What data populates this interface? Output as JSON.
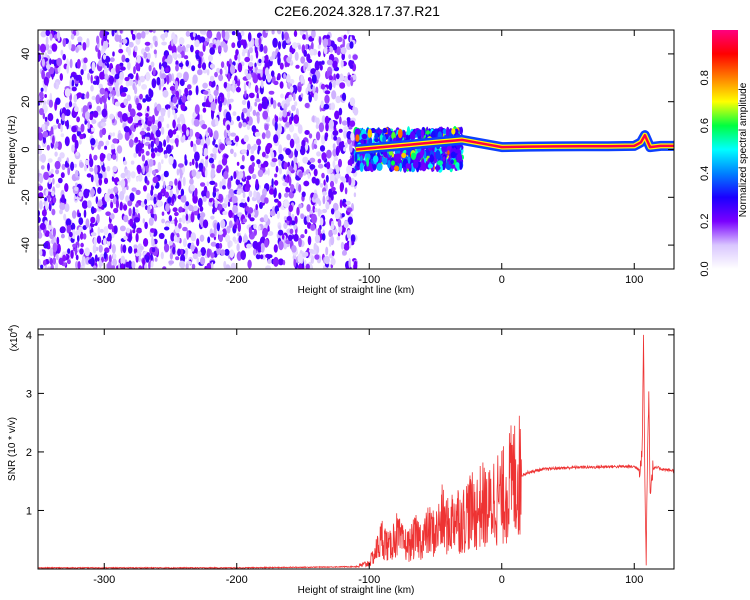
{
  "figure_title": "C2E6.2024.328.17.37.R21",
  "chart_data": [
    {
      "type": "heatmap",
      "title": "",
      "xlabel": "Height of straight line (km)",
      "ylabel": "Frequency (Hz)",
      "xlim": [
        -350,
        130
      ],
      "ylim": [
        -50,
        50
      ],
      "xticks": [
        -300,
        -200,
        -100,
        0,
        100
      ],
      "yticks": [
        -40,
        -20,
        0,
        20,
        40
      ],
      "xtick_labels": [
        "-300",
        "-200",
        "-100",
        "0",
        "100"
      ],
      "ytick_labels": [
        "-40",
        "-20",
        "0",
        "20",
        "40"
      ],
      "colorbar": {
        "label": "Normalized spectral amplitude",
        "range": [
          0,
          1
        ],
        "ticks": [
          0.0,
          0.2,
          0.4,
          0.6,
          0.8
        ],
        "tick_labels": [
          "0.0",
          "0.2",
          "0.4",
          "0.6",
          "0.8"
        ],
        "colormap": [
          "#ffffff",
          "#d9c6ff",
          "#7a00ff",
          "#1a00ff",
          "#0080ff",
          "#00ffff",
          "#00ff40",
          "#ffff00",
          "#ff8000",
          "#ff0000",
          "#ff007f"
        ]
      },
      "regions": [
        {
          "x_range": [
            -350,
            -110
          ],
          "freq_range": [
            -50,
            50
          ],
          "amplitude": 0.1
        },
        {
          "x_range": [
            -110,
            -30
          ],
          "freq_range": [
            -8,
            8
          ],
          "amplitude": 0.5
        },
        {
          "x_range": [
            -30,
            130
          ],
          "freq_range": [
            -1,
            3
          ],
          "amplitude": 0.9
        }
      ],
      "ridge": {
        "x": [
          -110,
          -90,
          -70,
          -50,
          -30,
          -10,
          0,
          20,
          40,
          60,
          80,
          100,
          105,
          108,
          112,
          120,
          130
        ],
        "freq": [
          0,
          1,
          2,
          3,
          4,
          2,
          1,
          1.2,
          1.3,
          1.4,
          1.4,
          1.5,
          3,
          6,
          1,
          1.5,
          1.5
        ]
      }
    },
    {
      "type": "line",
      "title": "",
      "xlabel": "Height of straight line (km)",
      "ylabel": "SNR (10 * v/v)",
      "y_multiplier_label": "(x10",
      "y_multiplier_exp": "4",
      "y_multiplier_close": ")",
      "xlim": [
        -350,
        130
      ],
      "ylim": [
        0,
        4.1
      ],
      "xticks": [
        -300,
        -200,
        -100,
        0,
        100
      ],
      "yticks": [
        1,
        2,
        3,
        4
      ],
      "xtick_labels": [
        "-300",
        "-200",
        "-100",
        "0",
        "100"
      ],
      "ytick_labels": [
        "1",
        "2",
        "3",
        "4"
      ],
      "series": [
        {
          "color": "#ee3333",
          "x": [
            -350,
            -300,
            -250,
            -200,
            -150,
            -110,
            -100,
            -95,
            -90,
            -85,
            -80,
            -75,
            -70,
            -65,
            -60,
            -55,
            -50,
            -45,
            -40,
            -35,
            -30,
            -25,
            -20,
            -15,
            -10,
            -5,
            0,
            5,
            10,
            15,
            20,
            30,
            40,
            50,
            60,
            70,
            80,
            90,
            100,
            104,
            106,
            107,
            108,
            109,
            110,
            111,
            112,
            114,
            118,
            122,
            126,
            130
          ],
          "y": [
            0.02,
            0.02,
            0.02,
            0.02,
            0.03,
            0.04,
            0.1,
            0.3,
            0.55,
            0.35,
            0.6,
            0.45,
            0.4,
            0.55,
            0.5,
            0.65,
            0.6,
            0.85,
            0.7,
            0.95,
            0.8,
            1.0,
            0.95,
            1.1,
            1.0,
            1.25,
            1.2,
            1.4,
            1.55,
            1.6,
            1.65,
            1.7,
            1.72,
            1.73,
            1.74,
            1.74,
            1.75,
            1.75,
            1.75,
            1.7,
            2.0,
            4.05,
            1.4,
            0.2,
            1.9,
            3.05,
            1.3,
            1.72,
            1.73,
            1.7,
            1.69,
            1.68
          ]
        }
      ]
    }
  ]
}
